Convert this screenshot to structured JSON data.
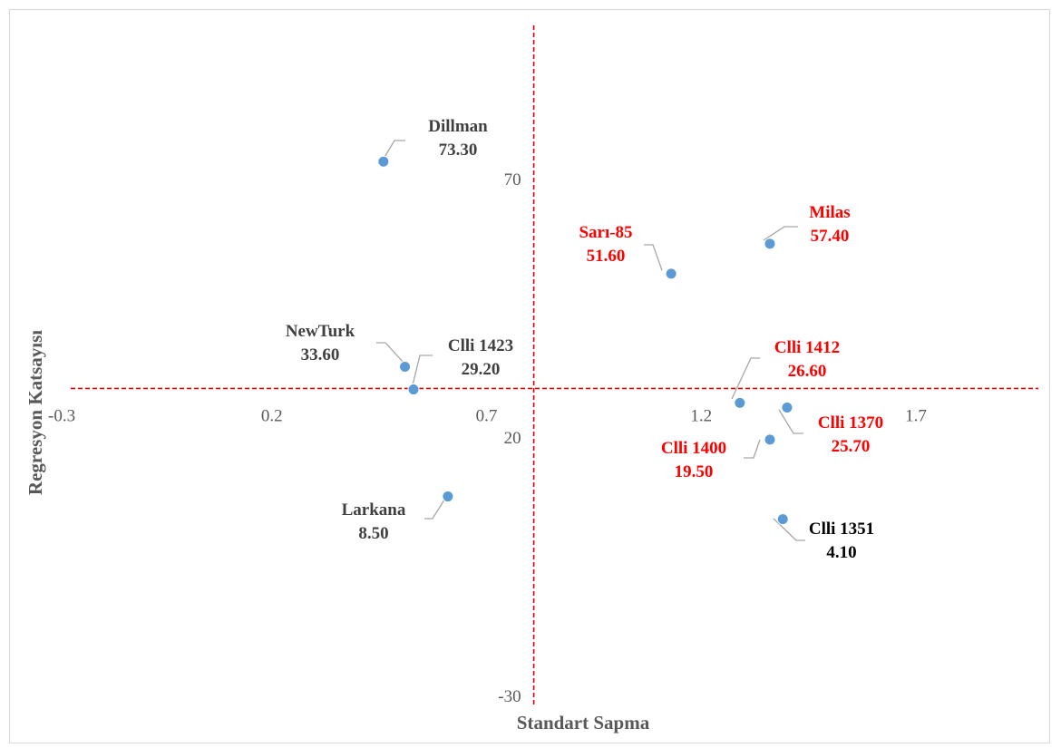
{
  "chart_data": {
    "type": "scatter",
    "xlabel": "Standart Sapma",
    "ylabel": "Regresyon Katsayısı",
    "xlim": [
      -0.3,
      2.0
    ],
    "ylim": [
      -30,
      105
    ],
    "x_ticks": [
      -0.3,
      0.2,
      0.7,
      1.2,
      1.7
    ],
    "x_tick_labels": [
      "-0.3",
      "0.2",
      "0.7",
      "1.2",
      "1.7"
    ],
    "y_ticks": [
      70,
      20,
      -30
    ],
    "y_tick_labels": [
      "70",
      "20",
      "-30"
    ],
    "crosshair": {
      "x": 0.81,
      "y": 29.4,
      "color": "#e00000",
      "style": "dashed"
    },
    "point_color": "#5b9bd5",
    "label_colors": {
      "dark": "#404040",
      "red": "#ff0000",
      "black": "#000000"
    },
    "points": [
      {
        "name": "Dillman",
        "value_label": "73.30",
        "x": 0.46,
        "y": 73.3,
        "label_color": "dark"
      },
      {
        "name": "Sarı-85",
        "value_label": "51.60",
        "x": 1.13,
        "y": 51.6,
        "label_color": "red"
      },
      {
        "name": "Milas",
        "value_label": "57.40",
        "x": 1.36,
        "y": 57.4,
        "label_color": "red"
      },
      {
        "name": "NewTurk",
        "value_label": "33.60",
        "x": 0.51,
        "y": 33.6,
        "label_color": "dark"
      },
      {
        "name": "Clli 1423",
        "value_label": "29.20",
        "x": 0.53,
        "y": 29.2,
        "label_color": "dark"
      },
      {
        "name": "Clli 1412",
        "value_label": "26.60",
        "x": 1.29,
        "y": 26.6,
        "label_color": "red"
      },
      {
        "name": "Clli 1370",
        "value_label": "25.70",
        "x": 1.4,
        "y": 25.7,
        "label_color": "red"
      },
      {
        "name": "Clli 1400",
        "value_label": "19.50",
        "x": 1.36,
        "y": 19.5,
        "label_color": "red"
      },
      {
        "name": "Larkana",
        "value_label": "8.50",
        "x": 0.61,
        "y": 8.5,
        "label_color": "dark"
      },
      {
        "name": "Clli 1351",
        "value_label": "4.10",
        "x": 1.39,
        "y": 4.1,
        "label_color": "black"
      }
    ]
  }
}
